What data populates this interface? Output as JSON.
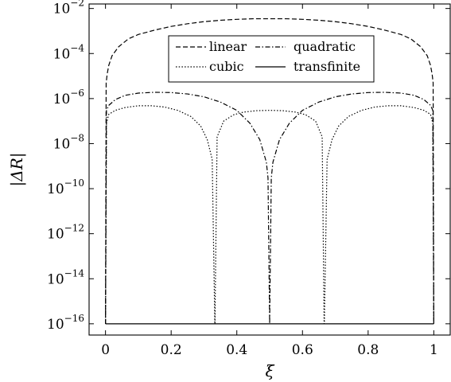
{
  "chart_data": {
    "type": "line",
    "xlabel": "ξ",
    "ylabel": "|ΔR|",
    "ylog": true,
    "xlim": [
      -0.05,
      1.05
    ],
    "ylim_exponent": [
      -16.5,
      -1.8
    ],
    "x_ticks": [
      {
        "value": 0,
        "label": "0"
      },
      {
        "value": 0.2,
        "label": "0.2"
      },
      {
        "value": 0.4,
        "label": "0.4"
      },
      {
        "value": 0.6,
        "label": "0.6"
      },
      {
        "value": 0.8,
        "label": "0.8"
      },
      {
        "value": 1,
        "label": "1"
      }
    ],
    "y_ticks": [
      {
        "exponent": -16,
        "base": "10",
        "sup": "−16"
      },
      {
        "exponent": -14,
        "base": "10",
        "sup": "−14"
      },
      {
        "exponent": -12,
        "base": "10",
        "sup": "−12"
      },
      {
        "exponent": -10,
        "base": "10",
        "sup": "−10"
      },
      {
        "exponent": -8,
        "base": "10",
        "sup": "−8"
      },
      {
        "exponent": -6,
        "base": "10",
        "sup": "−6"
      },
      {
        "exponent": -4,
        "base": "10",
        "sup": "−4"
      },
      {
        "exponent": -2,
        "base": "10",
        "sup": "−2"
      }
    ],
    "legend": {
      "placement": "top-center",
      "entries": [
        {
          "name": "linear",
          "dash": "dashed"
        },
        {
          "name": "quadratic",
          "dash": "dashdot"
        },
        {
          "name": "cubic",
          "dash": "dotted"
        },
        {
          "name": "transfinite",
          "dash": "solid"
        }
      ]
    },
    "series": [
      {
        "name": "linear",
        "dash": "dashed",
        "x": [
          0,
          0.002,
          0.005,
          0.01,
          0.02,
          0.04,
          0.07,
          0.1,
          0.15,
          0.2,
          0.25,
          0.3,
          0.35,
          0.4,
          0.45,
          0.5,
          0.55,
          0.6,
          0.65,
          0.7,
          0.75,
          0.8,
          0.85,
          0.9,
          0.93,
          0.96,
          0.98,
          0.99,
          0.995,
          0.998,
          1
        ],
        "y": [
          1e-16,
          5e-06,
          1.2e-05,
          3e-05,
          8e-05,
          0.0002,
          0.00045,
          0.0007,
          0.0011,
          0.0016,
          0.0021,
          0.0026,
          0.003,
          0.0033,
          0.0035,
          0.0035,
          0.0035,
          0.0033,
          0.003,
          0.0026,
          0.0021,
          0.0016,
          0.0011,
          0.0007,
          0.00045,
          0.0002,
          8e-05,
          3e-05,
          1.2e-05,
          5e-06,
          1e-16
        ]
      },
      {
        "name": "quadratic",
        "dash": "dashdot",
        "x": [
          0,
          0.003,
          0.01,
          0.03,
          0.06,
          0.1,
          0.15,
          0.2,
          0.25,
          0.3,
          0.35,
          0.4,
          0.44,
          0.47,
          0.49,
          0.495,
          0.5,
          0.505,
          0.51,
          0.53,
          0.56,
          0.6,
          0.65,
          0.7,
          0.75,
          0.8,
          0.85,
          0.9,
          0.94,
          0.97,
          0.99,
          0.997,
          1
        ],
        "y": [
          1e-16,
          3e-07,
          5e-07,
          9e-07,
          1.4e-06,
          1.75e-06,
          1.9e-06,
          1.85e-06,
          1.6e-06,
          1.2e-06,
          7e-07,
          3e-07,
          8e-08,
          1.5e-08,
          1.5e-09,
          3e-10,
          1e-16,
          3e-10,
          1.5e-09,
          1.5e-08,
          8e-08,
          3e-07,
          7e-07,
          1.2e-06,
          1.6e-06,
          1.85e-06,
          1.9e-06,
          1.75e-06,
          1.4e-06,
          9e-07,
          5e-07,
          3e-07,
          1e-16
        ]
      },
      {
        "name": "cubic",
        "dash": "dotted",
        "x": [
          0,
          0.003,
          0.01,
          0.03,
          0.06,
          0.1,
          0.14,
          0.18,
          0.22,
          0.26,
          0.29,
          0.31,
          0.325,
          0.333,
          0.3334,
          0.34,
          0.36,
          0.39,
          0.42,
          0.46,
          0.5,
          0.54,
          0.58,
          0.61,
          0.64,
          0.66,
          0.666,
          0.6667,
          0.675,
          0.69,
          0.71,
          0.74,
          0.78,
          0.82,
          0.86,
          0.9,
          0.94,
          0.97,
          0.99,
          0.997,
          1
        ],
        "y": [
          1e-16,
          8e-08,
          2e-07,
          3e-07,
          4e-07,
          4.8e-07,
          4.8e-07,
          4.2e-07,
          3e-07,
          1.6e-07,
          6e-08,
          1.5e-08,
          2e-09,
          1e-16,
          1e-16,
          2e-08,
          1e-07,
          1.9e-07,
          2.5e-07,
          2.9e-07,
          3e-07,
          2.9e-07,
          2.5e-07,
          1.9e-07,
          1e-07,
          2e-08,
          1e-16,
          1e-16,
          2e-09,
          1.5e-08,
          6e-08,
          1.6e-07,
          3e-07,
          4.2e-07,
          4.8e-07,
          4.8e-07,
          4e-07,
          3e-07,
          2e-07,
          8e-08,
          1e-16
        ]
      },
      {
        "name": "transfinite",
        "dash": "solid",
        "x": [
          0,
          1
        ],
        "y": [
          1e-16,
          1e-16
        ]
      }
    ]
  }
}
